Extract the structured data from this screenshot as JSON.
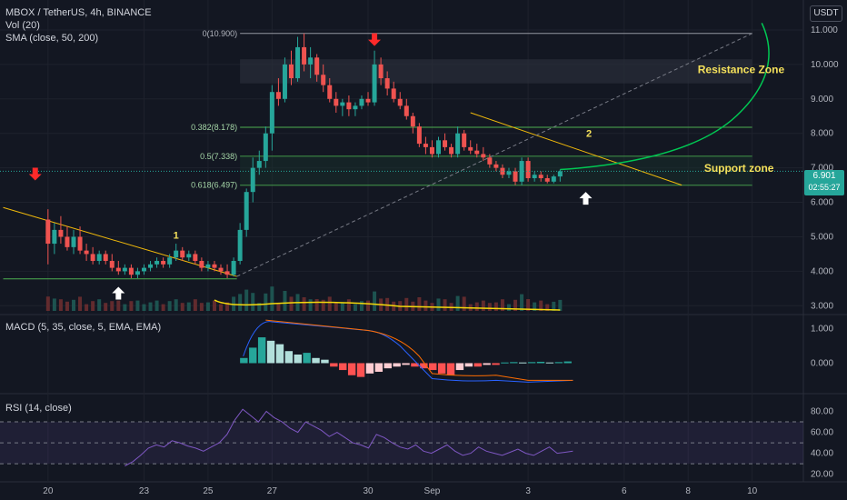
{
  "header": {
    "title": "MBOX / TetherUS, 4h, BINANCE",
    "vol_label": "Vol (20)",
    "sma_label": "SMA (close, 50, 200)",
    "currency": "USDT"
  },
  "panes": {
    "macd_label": "MACD (5, 35, close, 5, EMA, EMA)",
    "rsi_label": "RSI (14, close)"
  },
  "last_price": {
    "value": "6.901",
    "countdown": "02:55:27"
  },
  "colors": {
    "background": "#131722",
    "up": "#26a69a",
    "down": "#ef5350",
    "trendline": "#f0b90b",
    "fib": "#4caf50",
    "annotation_text": "#f5e15b",
    "arrow_down": "#ff2a2a",
    "arrow_up": "#ffffff",
    "rsi": "#7e57c2",
    "macd_line": "#2962ff",
    "signal_line": "#ff6d00",
    "projection": "#00c853"
  },
  "chart_data": [
    {
      "type": "candlestick",
      "pane": "price",
      "ylim": [
        2.85,
        11.5
      ],
      "y_ticks": [
        "11.000",
        "10.000",
        "9.000",
        "8.000",
        "7.000",
        "6.000",
        "5.000",
        "4.000",
        "3.000"
      ],
      "x_ticks": [
        "20",
        "23",
        "25",
        "27",
        "30",
        "Sep",
        "3",
        "6",
        "8",
        "10"
      ],
      "x_tick_positions": [
        19,
        22,
        24,
        26,
        29,
        31,
        34,
        37,
        39,
        41
      ],
      "x_domain": [
        17.5,
        42.6
      ],
      "candles": [
        [
          19.0,
          5.5,
          5.8,
          4.2,
          4.8
        ],
        [
          19.2,
          4.8,
          5.4,
          4.5,
          5.2
        ],
        [
          19.4,
          5.2,
          5.6,
          4.8,
          5.0
        ],
        [
          19.6,
          5.0,
          5.3,
          4.6,
          4.7
        ],
        [
          19.8,
          4.7,
          5.2,
          4.5,
          5.0
        ],
        [
          20.0,
          5.0,
          5.3,
          4.5,
          4.6
        ],
        [
          20.2,
          4.6,
          4.8,
          4.3,
          4.5
        ],
        [
          20.4,
          4.5,
          4.7,
          4.2,
          4.3
        ],
        [
          20.6,
          4.3,
          4.6,
          4.2,
          4.5
        ],
        [
          20.8,
          4.5,
          4.6,
          4.2,
          4.3
        ],
        [
          21.0,
          4.3,
          4.5,
          4.0,
          4.1
        ],
        [
          21.2,
          4.1,
          4.3,
          3.9,
          4.0
        ],
        [
          21.4,
          4.0,
          4.2,
          3.9,
          4.1
        ],
        [
          21.6,
          4.1,
          4.2,
          3.8,
          3.9
        ],
        [
          21.8,
          3.9,
          4.1,
          3.8,
          4.0
        ],
        [
          22.0,
          4.0,
          4.2,
          3.9,
          4.1
        ],
        [
          22.2,
          4.1,
          4.3,
          4.0,
          4.2
        ],
        [
          22.4,
          4.2,
          4.4,
          4.1,
          4.3
        ],
        [
          22.6,
          4.3,
          4.4,
          4.1,
          4.2
        ],
        [
          22.8,
          4.2,
          4.5,
          4.1,
          4.4
        ],
        [
          23.0,
          4.4,
          4.8,
          4.3,
          4.6
        ],
        [
          23.2,
          4.6,
          4.7,
          4.3,
          4.4
        ],
        [
          23.4,
          4.4,
          4.6,
          4.3,
          4.5
        ],
        [
          23.6,
          4.5,
          4.6,
          4.2,
          4.3
        ],
        [
          23.8,
          4.3,
          4.4,
          4.0,
          4.1
        ],
        [
          24.0,
          4.1,
          4.3,
          4.0,
          4.2
        ],
        [
          24.2,
          4.2,
          4.3,
          4.0,
          4.1
        ],
        [
          24.4,
          4.1,
          4.2,
          3.9,
          4.0
        ],
        [
          24.6,
          4.0,
          4.2,
          3.8,
          3.9
        ],
        [
          24.8,
          3.9,
          4.4,
          3.85,
          4.3
        ],
        [
          25.0,
          4.3,
          5.4,
          4.2,
          5.2
        ],
        [
          25.2,
          5.2,
          6.4,
          5.0,
          6.3
        ],
        [
          25.4,
          6.3,
          7.3,
          6.0,
          7.0
        ],
        [
          25.6,
          7.0,
          7.5,
          6.8,
          7.2
        ],
        [
          25.8,
          7.2,
          8.2,
          7.0,
          8.0
        ],
        [
          26.0,
          8.0,
          9.4,
          7.5,
          9.2
        ],
        [
          26.2,
          9.2,
          9.6,
          8.8,
          9.0
        ],
        [
          26.4,
          9.0,
          10.2,
          8.9,
          10.0
        ],
        [
          26.6,
          10.0,
          10.4,
          9.4,
          9.6
        ],
        [
          26.8,
          9.6,
          10.8,
          9.5,
          10.5
        ],
        [
          27.0,
          10.5,
          10.9,
          9.8,
          10.0
        ],
        [
          27.2,
          10.0,
          10.5,
          9.6,
          10.2
        ],
        [
          27.4,
          10.2,
          10.3,
          9.5,
          9.7
        ],
        [
          27.6,
          9.7,
          10.0,
          9.2,
          9.4
        ],
        [
          27.8,
          9.4,
          9.6,
          8.9,
          9.0
        ],
        [
          28.0,
          9.0,
          9.2,
          8.6,
          8.8
        ],
        [
          28.2,
          8.8,
          9.0,
          8.5,
          8.9
        ],
        [
          28.4,
          8.9,
          9.1,
          8.5,
          8.7
        ],
        [
          28.6,
          8.7,
          8.9,
          8.5,
          8.8
        ],
        [
          28.8,
          8.8,
          9.1,
          8.7,
          9.0
        ],
        [
          29.0,
          9.0,
          9.2,
          8.8,
          8.9
        ],
        [
          29.2,
          8.9,
          10.4,
          8.8,
          10.0
        ],
        [
          29.4,
          10.0,
          10.2,
          9.4,
          9.6
        ],
        [
          29.6,
          9.6,
          9.8,
          9.1,
          9.3
        ],
        [
          29.8,
          9.3,
          9.5,
          8.9,
          9.0
        ],
        [
          30.0,
          9.0,
          9.2,
          8.7,
          8.8
        ],
        [
          30.2,
          8.8,
          9.0,
          8.4,
          8.5
        ],
        [
          30.4,
          8.5,
          8.6,
          8.0,
          8.2
        ],
        [
          30.6,
          8.2,
          8.3,
          7.6,
          7.7
        ],
        [
          30.8,
          7.7,
          7.9,
          7.4,
          7.6
        ],
        [
          31.0,
          7.6,
          7.8,
          7.3,
          7.4
        ],
        [
          31.2,
          7.4,
          7.9,
          7.3,
          7.8
        ],
        [
          31.4,
          7.8,
          8.0,
          7.5,
          7.6
        ],
        [
          31.6,
          7.6,
          7.7,
          7.3,
          7.4
        ],
        [
          31.8,
          7.4,
          8.2,
          7.3,
          8.0
        ],
        [
          32.0,
          8.0,
          8.1,
          7.5,
          7.6
        ],
        [
          32.2,
          7.6,
          7.8,
          7.4,
          7.5
        ],
        [
          32.4,
          7.5,
          7.7,
          7.3,
          7.4
        ],
        [
          32.6,
          7.4,
          7.6,
          7.2,
          7.3
        ],
        [
          32.8,
          7.3,
          7.4,
          7.0,
          7.1
        ],
        [
          33.0,
          7.1,
          7.2,
          6.9,
          7.0
        ],
        [
          33.2,
          7.0,
          7.1,
          6.7,
          6.8
        ],
        [
          33.4,
          6.8,
          7.0,
          6.7,
          6.9
        ],
        [
          33.6,
          6.9,
          7.0,
          6.5,
          6.6
        ],
        [
          33.8,
          6.6,
          7.3,
          6.5,
          7.2
        ],
        [
          34.0,
          7.2,
          7.3,
          6.6,
          6.7
        ],
        [
          34.2,
          6.7,
          6.9,
          6.6,
          6.8
        ],
        [
          34.4,
          6.8,
          6.9,
          6.6,
          6.7
        ],
        [
          34.6,
          6.7,
          6.8,
          6.55,
          6.6
        ],
        [
          34.8,
          6.6,
          6.8,
          6.55,
          6.75
        ],
        [
          35.0,
          6.75,
          6.95,
          6.6,
          6.9
        ]
      ],
      "annotations": {
        "label_1": "1",
        "label_2": "2",
        "resistance": "Resistance Zone",
        "support": "Support zone",
        "fib_0": "0(10.900)",
        "fib_0382": "0.382(8.178)",
        "fib_05": "0.5(7.338)",
        "fib_0618": "0.618(6.497)"
      },
      "fib_levels": [
        10.9,
        8.178,
        7.338,
        6.497
      ],
      "support_line": 3.78
    },
    {
      "type": "bar",
      "pane": "macd",
      "y_ticks": [
        "1.000",
        "0.000"
      ],
      "ylim": [
        -0.7,
        1.2
      ],
      "histogram": [
        0.15,
        0.45,
        0.75,
        0.65,
        0.55,
        0.35,
        0.25,
        0.3,
        0.15,
        0.1,
        -0.1,
        -0.2,
        -0.35,
        -0.4,
        -0.3,
        -0.25,
        -0.15,
        -0.1,
        -0.05,
        -0.1,
        -0.15,
        -0.2,
        -0.3,
        -0.35,
        -0.2,
        -0.1,
        -0.1,
        -0.05,
        -0.05,
        0.02,
        0.03,
        0.02,
        0.03,
        0.04,
        0.02,
        0.03,
        0.05
      ]
    },
    {
      "type": "line",
      "pane": "rsi",
      "y_ticks": [
        "80.00",
        "60.00",
        "40.00",
        "20.00"
      ],
      "ylim": [
        18,
        90
      ],
      "values": [
        28,
        32,
        38,
        45,
        48,
        46,
        52,
        50,
        47,
        45,
        42,
        46,
        50,
        58,
        72,
        82,
        76,
        70,
        80,
        74,
        70,
        64,
        60,
        70,
        66,
        62,
        56,
        60,
        55,
        50,
        48,
        45,
        58,
        55,
        50,
        46,
        44,
        48,
        42,
        40,
        44,
        48,
        42,
        38,
        40,
        46,
        42,
        40,
        38,
        41,
        44,
        40,
        38,
        42,
        46,
        40,
        41,
        42
      ]
    }
  ]
}
